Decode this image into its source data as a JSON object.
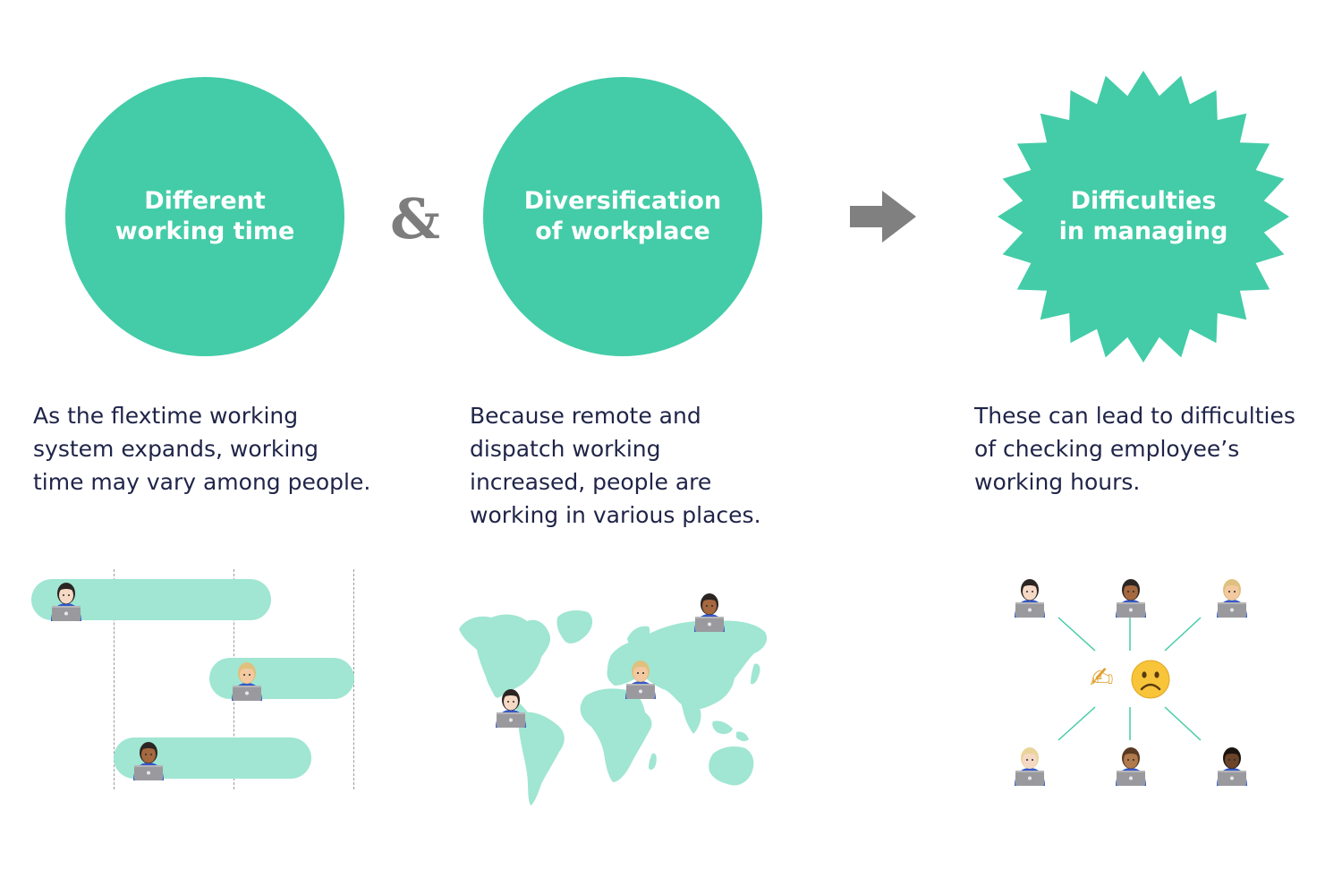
{
  "colors": {
    "accent": "#43cca7",
    "accent_light": "#a0e6d2",
    "text": "#1f2448",
    "arrow": "#808080",
    "ampersand": "#7d7d7d"
  },
  "step1": {
    "title": "Different\nworking time",
    "description": [
      "As the flextime working",
      "system expands, working",
      "time may vary among people."
    ]
  },
  "connector": {
    "ampersand": "&",
    "arrow_icon": "right-arrow-icon"
  },
  "step2": {
    "title": "Diversification\nof workplace",
    "description": [
      "Because remote and",
      "dispatch working",
      "increased, people are",
      "working in various places."
    ]
  },
  "step3": {
    "title": "Difficulties\nin managing",
    "description": [
      "These can lead to difficulties",
      "of checking employee’s",
      "working hours."
    ]
  },
  "illustrations": {
    "timeline_icon": "person-with-laptop-icon",
    "map_icon": "world-map-icon",
    "center_emojis": [
      "✍",
      "☹"
    ]
  }
}
